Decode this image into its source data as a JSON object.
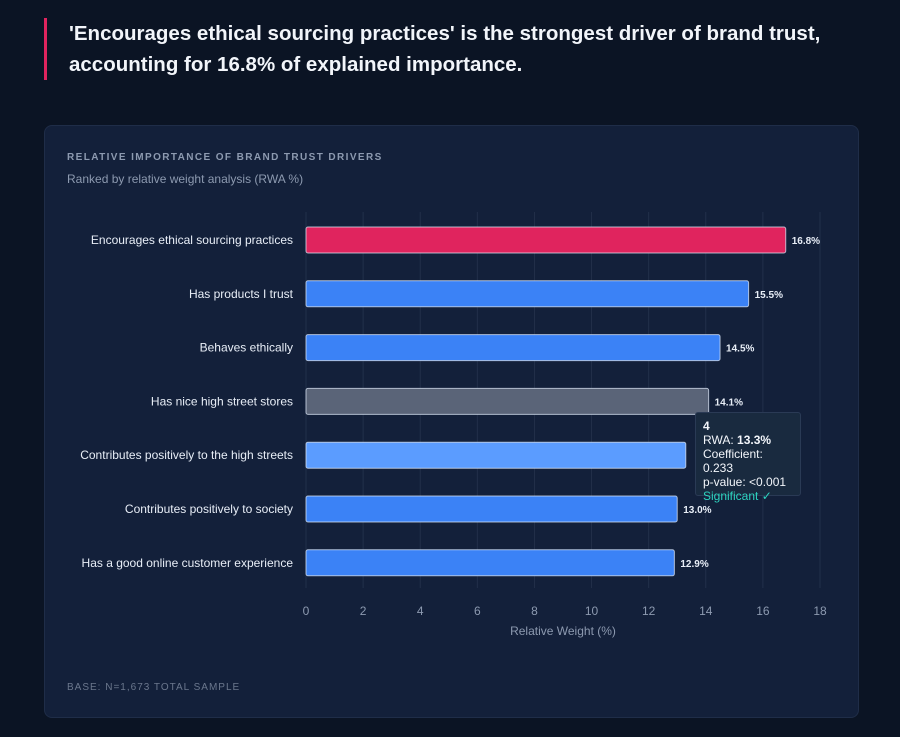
{
  "headline": "'Encourages ethical sourcing practices' is the strongest driver of brand trust, accounting for 16.8% of explained importance.",
  "card": {
    "title": "RELATIVE IMPORTANCE OF BRAND TRUST DRIVERS",
    "subtitle": "Ranked by relative weight analysis (RWA %)",
    "base": "BASE: N=1,673 TOTAL SAMPLE"
  },
  "colors": {
    "background": "#0b1424",
    "card": "#13203a",
    "highlight_bar": "#e0245e",
    "bar": "#3b82f6",
    "bar_hovered": "#5b9cff",
    "bar_muted": "#5a6478",
    "accent_green": "#2dd4bf"
  },
  "chart_data": {
    "type": "bar",
    "orientation": "horizontal",
    "title": "RELATIVE IMPORTANCE OF BRAND TRUST DRIVERS",
    "subtitle": "Ranked by relative weight analysis (RWA %)",
    "categories": [
      "Encourages ethical sourcing practices",
      "Has products I trust",
      "Behaves ethically",
      "Has nice high street stores",
      "Contributes positively to the high streets",
      "Contributes positively to society",
      "Has a good online customer experience"
    ],
    "values": [
      16.8,
      15.5,
      14.5,
      14.1,
      13.3,
      13.0,
      12.9
    ],
    "data_labels": [
      "16.8%",
      "15.5%",
      "14.5%",
      "14.1%",
      "",
      "13.0%",
      "12.9%"
    ],
    "bar_styles": [
      "highlight",
      "normal",
      "normal",
      "muted",
      "hovered",
      "normal",
      "normal"
    ],
    "xlabel": "Relative Weight (%)",
    "ylabel": "",
    "xlim": [
      0,
      18
    ],
    "xticks": [
      0,
      2,
      4,
      6,
      8,
      10,
      12,
      14,
      16,
      18
    ],
    "grid": "vertical",
    "legend": "none"
  },
  "tooltip": {
    "title": "4",
    "rwa_label": "RWA: ",
    "rwa_value": "13.3%",
    "coefficient": "Coefficient: 0.233",
    "p_value": "p-value: <0.001",
    "significance": "Significant ✓"
  }
}
